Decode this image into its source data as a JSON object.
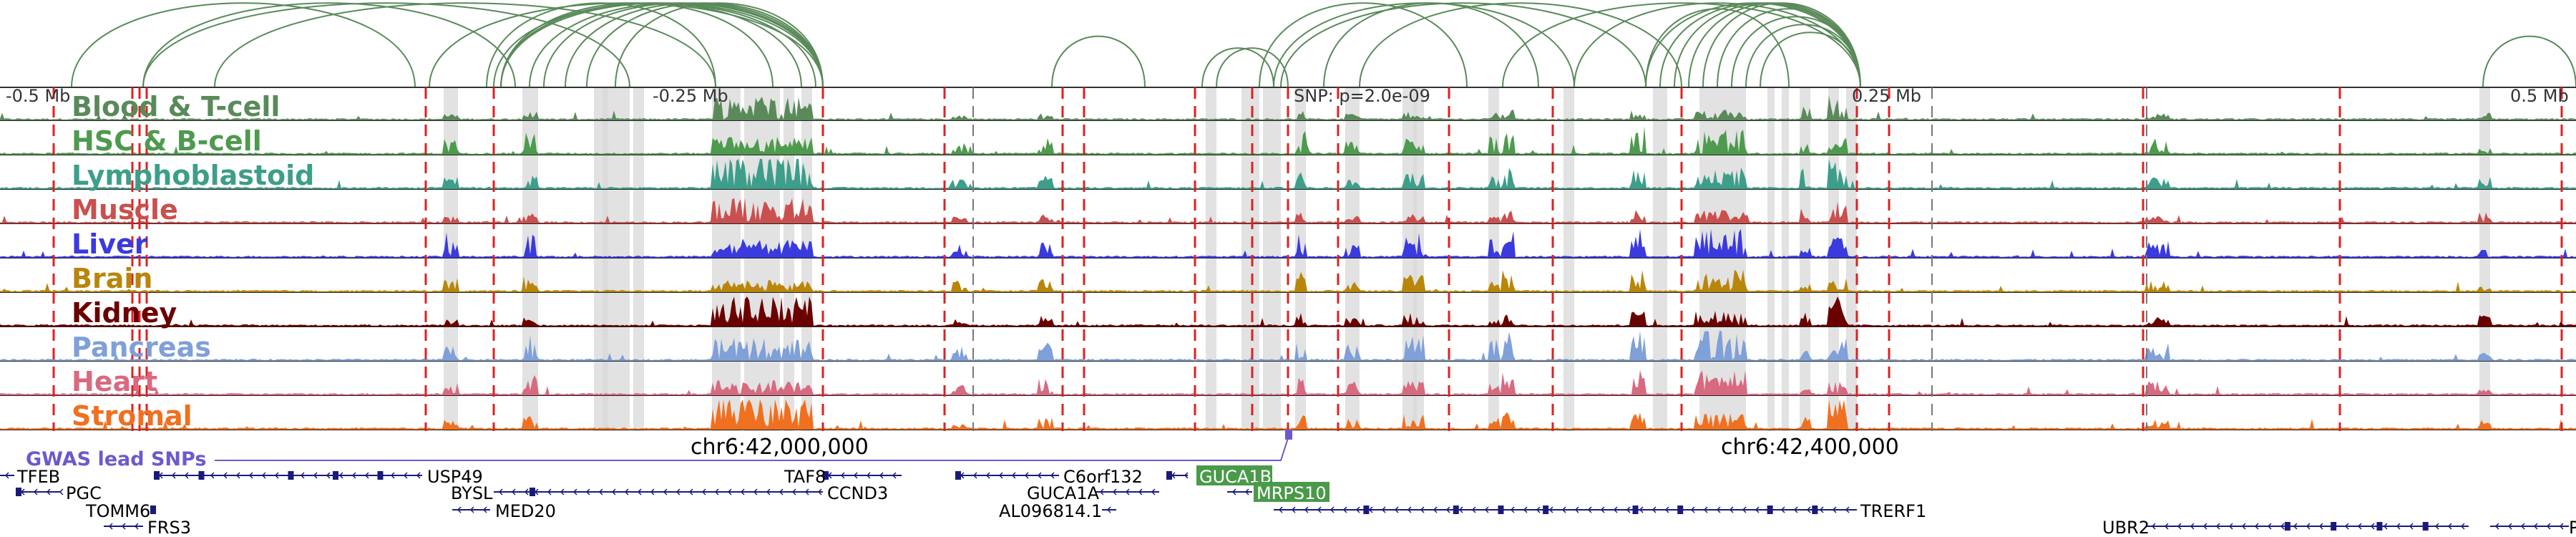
{
  "axis": {
    "tick_labels": [
      "-0.5 Mb",
      "-0.25 Mb",
      "0.25 Mb",
      "0.5 Mb"
    ],
    "snp_annotation": "SNP: p=2.0e-09",
    "coord_labels": [
      "chr6:42,000,000",
      "chr6:42,400,000"
    ]
  },
  "tracks": [
    {
      "label": "Blood & T-cell",
      "color": "#5a8a5a"
    },
    {
      "label": "HSC & B-cell",
      "color": "#4e9a4e"
    },
    {
      "label": "Lymphoblastoid",
      "color": "#3d9e8a"
    },
    {
      "label": "Muscle",
      "color": "#c9504e"
    },
    {
      "label": "Liver",
      "color": "#3a3ade"
    },
    {
      "label": "Brain",
      "color": "#b8860b"
    },
    {
      "label": "Kidney",
      "color": "#6b0000"
    },
    {
      "label": "Pancreas",
      "color": "#7fa0d8"
    },
    {
      "label": "Heart",
      "color": "#d86a80"
    },
    {
      "label": "Stromal",
      "color": "#f07020"
    }
  ],
  "gwas_label": "GWAS lead SNPs",
  "genes": [
    {
      "name": "TFEB"
    },
    {
      "name": "PGC"
    },
    {
      "name": "TOMM6"
    },
    {
      "name": "FRS3"
    },
    {
      "name": "USP49"
    },
    {
      "name": "BYSL"
    },
    {
      "name": "MED20"
    },
    {
      "name": "TAF8"
    },
    {
      "name": "CCND3"
    },
    {
      "name": "C6orf132"
    },
    {
      "name": "GUCA1A"
    },
    {
      "name": "AL096814.1"
    },
    {
      "name": "GUCA1B",
      "highlight": true
    },
    {
      "name": "MRPS10",
      "highlight": true
    },
    {
      "name": "TRERF1"
    },
    {
      "name": "UBR2"
    },
    {
      "name": "PR"
    }
  ],
  "colors": {
    "loop": "#5a8a5a",
    "red_line": "#e02020",
    "highlight_band": "#d8d8d8",
    "gwas": "#6a5acd",
    "gene": "#1a1a7a",
    "gene_highlight_bg": "#4a9a4a"
  }
}
